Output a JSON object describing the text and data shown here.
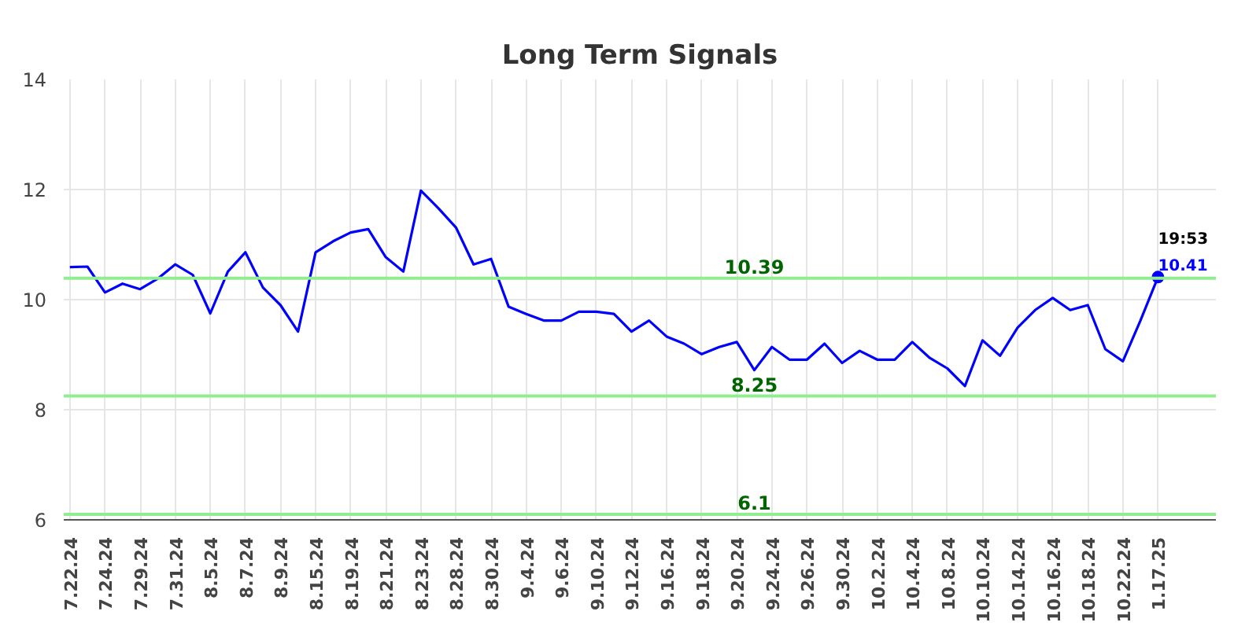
{
  "chart_data": {
    "type": "line",
    "title": "Long Term Signals",
    "categories": [
      "7.22.24",
      null,
      "7.24.24",
      null,
      "7.29.24",
      null,
      "7.31.24",
      null,
      "8.5.24",
      null,
      "8.7.24",
      null,
      "8.9.24",
      null,
      "8.15.24",
      null,
      "8.19.24",
      null,
      "8.21.24",
      null,
      "8.23.24",
      null,
      "8.28.24",
      null,
      "8.30.24",
      null,
      "9.4.24",
      null,
      "9.6.24",
      null,
      "9.10.24",
      null,
      "9.12.24",
      null,
      "9.16.24",
      null,
      "9.18.24",
      null,
      "9.20.24",
      null,
      "9.24.24",
      null,
      "9.26.24",
      null,
      "9.30.24",
      null,
      "10.2.24",
      null,
      "10.4.24",
      null,
      "10.8.24",
      null,
      "10.10.24",
      null,
      "10.14.24",
      null,
      "10.16.24",
      null,
      "10.18.24",
      null,
      "10.22.24",
      null,
      "1.17.25"
    ],
    "series": [
      {
        "color": "#0000ff",
        "values": [
          10.59,
          10.6,
          10.13,
          10.29,
          10.19,
          10.38,
          10.64,
          10.45,
          9.75,
          10.51,
          10.86,
          10.22,
          9.9,
          9.42,
          10.86,
          11.06,
          11.22,
          11.28,
          10.77,
          10.51,
          11.98,
          11.66,
          11.31,
          10.64,
          10.74,
          9.87,
          9.74,
          9.62,
          9.62,
          9.78,
          9.78,
          9.74,
          9.42,
          9.62,
          9.33,
          9.2,
          9.01,
          9.14,
          9.23,
          8.72,
          9.14,
          8.91,
          8.91,
          9.2,
          8.85,
          9.07,
          8.91,
          8.91,
          9.23,
          8.94,
          8.75,
          8.43,
          9.26,
          8.98,
          9.49,
          9.81,
          10.03,
          9.81,
          9.9,
          9.1,
          8.88,
          9.62,
          10.41
        ]
      }
    ],
    "ylim": [
      6,
      14
    ],
    "yticks": [
      6,
      8,
      10,
      12,
      14
    ],
    "grid": true,
    "ref_lines": [
      {
        "axis": "y",
        "value": 10.39,
        "label": "10.39",
        "color": "#90ee90"
      },
      {
        "axis": "y",
        "value": 8.25,
        "label": "8.25",
        "color": "#90ee90"
      },
      {
        "axis": "y",
        "value": 6.1,
        "label": "6.1",
        "color": "#90ee90"
      }
    ],
    "annotations": [
      {
        "text": "19:53",
        "x": "1.17.25",
        "y": 10.41
      },
      {
        "text": "10.41",
        "x": "1.17.25",
        "y": 10.41
      }
    ]
  }
}
